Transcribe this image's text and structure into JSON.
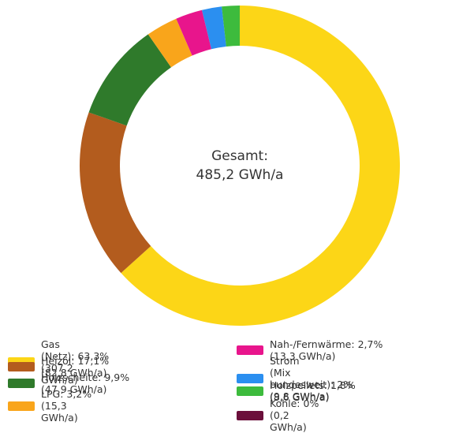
{
  "chart_data": {
    "type": "donut",
    "center_label": [
      "Gesamt:",
      "485,2 GWh/a"
    ],
    "categories": [
      "Gas (Netz):",
      "Heizöl:",
      "Holzscheite:",
      "LPG:",
      "Nah-/Fernwärme:",
      "Strom\n(Mix bundesweit):",
      "Holzpellets:",
      "Kohle:"
    ],
    "values": [
      63.3,
      17.1,
      9.9,
      3.2,
      2.7,
      2,
      1.8,
      0
    ],
    "value_labels": [
      "63,3% (307,2 GWh/a)",
      "17,1% (82,8 GWh/a)",
      "9,9% (47,9 GWh/a)",
      "3,2% (15,3 GWh/a)",
      "2,7% (13,3 GWh/a)",
      "2% (9,8 GWh/a)",
      "1,8% (8,6 GWh/a)",
      "0% (0,2 GWh/a)"
    ],
    "colors": [
      "#fcd617",
      "#b35c1e",
      "#2f7a2b",
      "#f9a51b",
      "#e8158c",
      "#2b8ff0",
      "#3dbb3d",
      "#6b0f3b"
    ]
  }
}
